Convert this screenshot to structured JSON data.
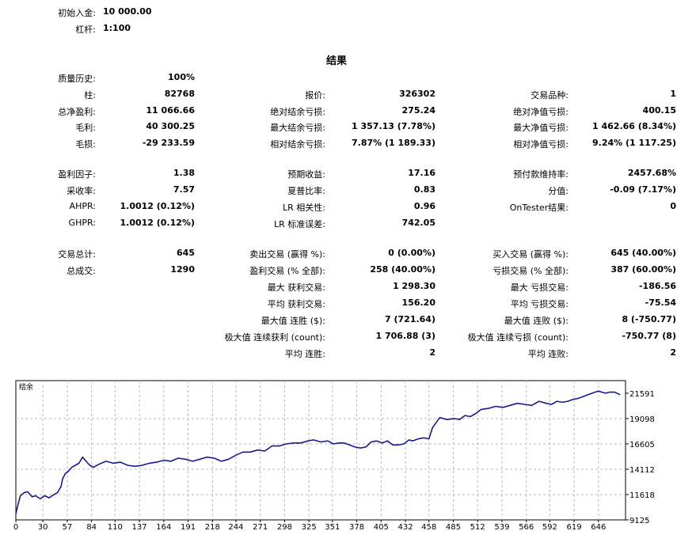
{
  "top": {
    "initial_deposit_label": "初始入金:",
    "initial_deposit_value": "10 000.00",
    "leverage_label": "杠杆:",
    "leverage_value": "1:100"
  },
  "results_title": "结果",
  "col1": [
    {
      "label": "质量历史:",
      "value": "100%"
    },
    {
      "label": "柱:",
      "value": "82768"
    },
    {
      "label": "总净盈利:",
      "value": "11 066.66"
    },
    {
      "label": "毛利:",
      "value": "40 300.25"
    },
    {
      "label": "毛损:",
      "value": "-29 233.59"
    },
    {
      "label": "盈利因子:",
      "value": "1.38"
    },
    {
      "label": "采收率:",
      "value": "7.57"
    },
    {
      "label": "AHPR:",
      "value": "1.0012 (0.12%)"
    },
    {
      "label": "GHPR:",
      "value": "1.0012 (0.12%)"
    },
    {
      "label": "交易总计:",
      "value": "645"
    },
    {
      "label": "总成交:",
      "value": "1290"
    }
  ],
  "col2": [
    {
      "label": "报价:",
      "value": "326302"
    },
    {
      "label": "绝对结余亏损:",
      "value": "275.24"
    },
    {
      "label": "最大结余亏损:",
      "value": "1 357.13 (7.78%)"
    },
    {
      "label": "相对结余亏损:",
      "value": "7.87% (1 189.33)"
    },
    {
      "label": "预期收益:",
      "value": "17.16"
    },
    {
      "label": "夏普比率:",
      "value": "0.83"
    },
    {
      "label": "LR 相关性:",
      "value": "0.96"
    },
    {
      "label": "LR 标准误差:",
      "value": "742.05"
    },
    {
      "label": "卖出交易 (赢得 %):",
      "value": "0 (0.00%)"
    },
    {
      "label": "盈利交易 (% 全部):",
      "value": "258 (40.00%)"
    },
    {
      "label": "最大 获利交易:",
      "value": "1 298.30"
    },
    {
      "label": "平均 获利交易:",
      "value": "156.20"
    },
    {
      "label": "最大值 连胜 ($):",
      "value": "7 (721.64)"
    },
    {
      "label": "极大值 连续获利 (count):",
      "value": "1 706.88 (3)"
    },
    {
      "label": "平均 连胜:",
      "value": "2"
    }
  ],
  "col3": [
    {
      "label": "交易品种:",
      "value": "1"
    },
    {
      "label": "绝对净值亏损:",
      "value": "400.15"
    },
    {
      "label": "最大净值亏损:",
      "value": "1 462.66 (8.34%)"
    },
    {
      "label": "相对净值亏损:",
      "value": "9.24% (1 117.25)"
    },
    {
      "label": "预付款维持率:",
      "value": "2457.68%"
    },
    {
      "label": "分值:",
      "value": "-0.09 (7.17%)"
    },
    {
      "label": "OnTester结果:",
      "value": "0"
    },
    {
      "label": "买入交易 (赢得 %):",
      "value": "645 (40.00%)"
    },
    {
      "label": "亏损交易 (% 全部):",
      "value": "387 (60.00%)"
    },
    {
      "label": "最大 亏损交易:",
      "value": "-186.56"
    },
    {
      "label": "平均 亏损交易:",
      "value": "-75.54"
    },
    {
      "label": "最大值 连败 ($):",
      "value": "8 (-750.77)"
    },
    {
      "label": "极大值 连续亏损 (count):",
      "value": "-750.77 (8)"
    },
    {
      "label": "平均 连败:",
      "value": "2"
    }
  ],
  "chart_data": {
    "type": "line",
    "title": "结余",
    "line_color": "#1a1a8c",
    "x_ticks": [
      "0",
      "30",
      "57",
      "84",
      "110",
      "137",
      "164",
      "191",
      "218",
      "244",
      "271",
      "298",
      "325",
      "351",
      "378",
      "405",
      "432",
      "458",
      "485",
      "512",
      "539",
      "566",
      "592",
      "619",
      "646"
    ],
    "y_ticks": [
      "21591",
      "19098",
      "16605",
      "14112",
      "11618",
      "9125"
    ],
    "xlim": [
      0,
      676
    ],
    "ylim": [
      9125,
      22835
    ],
    "grid": true,
    "series": [
      {
        "x": [
          0,
          2,
          5,
          9,
          13,
          18,
          22,
          27,
          32,
          37,
          42,
          46,
          50,
          52,
          55,
          58,
          62,
          66,
          70,
          74,
          78,
          82,
          86,
          92,
          100,
          108,
          116,
          124,
          132,
          140,
          148,
          156,
          164,
          172,
          180,
          188,
          196,
          204,
          212,
          220,
          228,
          236,
          244,
          252,
          260,
          268,
          276,
          284,
          292,
          300,
          308,
          316,
          324,
          330,
          338,
          346,
          352,
          358,
          364,
          370,
          376,
          382,
          388,
          394,
          400,
          406,
          412,
          418,
          424,
          430,
          436,
          440,
          446,
          452,
          458,
          462,
          470,
          478,
          486,
          492,
          498,
          504,
          510,
          516,
          524,
          532,
          540,
          548,
          556,
          564,
          572,
          580,
          588,
          594,
          600,
          606,
          612,
          618,
          624,
          630,
          636,
          642,
          646,
          650,
          654,
          658,
          664,
          670
        ],
        "y": [
          9700,
          10500,
          11500,
          11800,
          11900,
          11400,
          11500,
          11200,
          11500,
          11300,
          11600,
          11800,
          12400,
          13200,
          13700,
          13900,
          14300,
          14500,
          14700,
          15300,
          14900,
          14500,
          14300,
          14600,
          14900,
          14700,
          14800,
          14500,
          14400,
          14500,
          14700,
          14800,
          15000,
          14900,
          15200,
          15100,
          14900,
          15100,
          15300,
          15200,
          14900,
          15100,
          15500,
          15800,
          15800,
          16000,
          15900,
          16400,
          16400,
          16600,
          16700,
          16700,
          16900,
          17000,
          16800,
          16900,
          16600,
          16700,
          16700,
          16500,
          16300,
          16200,
          16300,
          16800,
          16900,
          16700,
          16900,
          16500,
          16500,
          16600,
          17000,
          16900,
          17100,
          17200,
          17100,
          18200,
          19200,
          19000,
          19100,
          19000,
          19400,
          19300,
          19600,
          20000,
          20100,
          20300,
          20200,
          20400,
          20600,
          20500,
          20400,
          20800,
          20600,
          20500,
          20800,
          20700,
          20800,
          21000,
          21100,
          21300,
          21500,
          21700,
          21800,
          21700,
          21600,
          21700,
          21700,
          21450
        ]
      }
    ]
  }
}
